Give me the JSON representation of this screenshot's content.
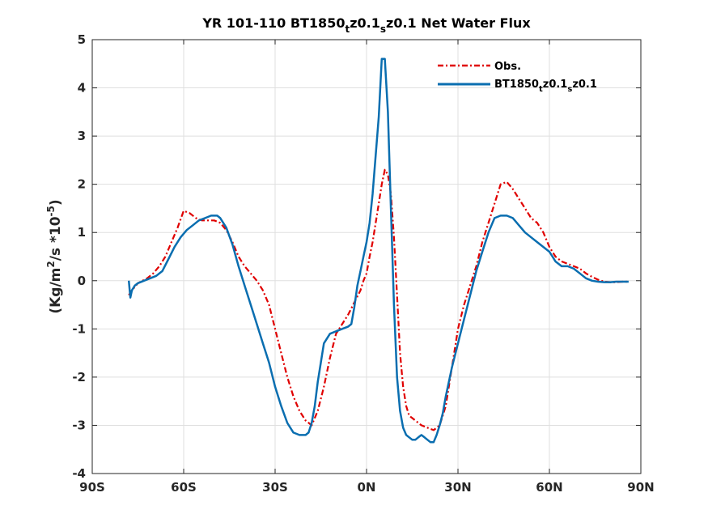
{
  "chart_data": {
    "type": "line",
    "title": {
      "prefix": "YR 101-110 BT1850",
      "sub1": "t",
      "mid": "z0.1",
      "sub2": "s",
      "suffix": "z0.1  Net Water Flux"
    },
    "ylabel": {
      "pre": "(Kg/m",
      "sup1": "2",
      "mid": "/s *10",
      "sup2": "-5",
      "post": ")"
    },
    "xlim": [
      -90,
      90
    ],
    "ylim": [
      -4,
      5
    ],
    "x_ticks": [
      {
        "value": -90,
        "label": "90S"
      },
      {
        "value": -60,
        "label": "60S"
      },
      {
        "value": -30,
        "label": "30S"
      },
      {
        "value": 0,
        "label": "0N"
      },
      {
        "value": 30,
        "label": "30N"
      },
      {
        "value": 60,
        "label": "60N"
      },
      {
        "value": 90,
        "label": "90N"
      }
    ],
    "y_ticks": [
      {
        "value": -4,
        "label": "-4"
      },
      {
        "value": -3,
        "label": "-3"
      },
      {
        "value": -2,
        "label": "-2"
      },
      {
        "value": -1,
        "label": "-1"
      },
      {
        "value": 0,
        "label": "0"
      },
      {
        "value": 1,
        "label": "1"
      },
      {
        "value": 2,
        "label": "2"
      },
      {
        "value": 3,
        "label": "3"
      },
      {
        "value": 4,
        "label": "4"
      },
      {
        "value": 5,
        "label": "5"
      }
    ],
    "grid": true,
    "legend_position": "top-right",
    "series": [
      {
        "name": "Obs.",
        "color": "#e00000",
        "style": "dash-dot",
        "x": [
          -78,
          -77,
          -75,
          -72,
          -70,
          -68,
          -66,
          -64,
          -62,
          -60,
          -58,
          -56,
          -54,
          -52,
          -50,
          -48,
          -46,
          -44,
          -42,
          -40,
          -38,
          -36,
          -34,
          -32,
          -30,
          -28,
          -26,
          -24,
          -22,
          -20,
          -18,
          -16,
          -14,
          -12,
          -10,
          -8,
          -6,
          -4,
          -2,
          -1,
          0,
          1,
          2,
          3,
          4,
          5,
          6,
          7,
          8,
          9,
          10,
          11,
          12,
          13,
          14,
          16,
          18,
          20,
          22,
          24,
          26,
          28,
          30,
          32,
          34,
          36,
          38,
          40,
          42,
          44,
          46,
          48,
          50,
          52,
          54,
          56,
          58,
          60,
          62,
          64,
          66,
          68,
          70,
          72,
          74,
          76,
          78,
          80,
          82,
          84,
          86
        ],
        "y": [
          -0.3,
          -0.2,
          -0.05,
          0.05,
          0.15,
          0.3,
          0.5,
          0.8,
          1.1,
          1.45,
          1.4,
          1.3,
          1.25,
          1.25,
          1.25,
          1.2,
          1.05,
          0.8,
          0.5,
          0.3,
          0.15,
          0.0,
          -0.2,
          -0.5,
          -1.0,
          -1.5,
          -2.0,
          -2.4,
          -2.7,
          -2.9,
          -3.0,
          -2.7,
          -2.2,
          -1.6,
          -1.1,
          -0.9,
          -0.7,
          -0.45,
          -0.2,
          0.0,
          0.15,
          0.5,
          0.8,
          1.2,
          1.6,
          2.0,
          2.3,
          2.2,
          1.8,
          0.9,
          -0.3,
          -1.5,
          -2.2,
          -2.6,
          -2.8,
          -2.9,
          -3.0,
          -3.05,
          -3.1,
          -3.0,
          -2.6,
          -1.8,
          -1.0,
          -0.5,
          -0.1,
          0.3,
          0.8,
          1.2,
          1.6,
          2.0,
          2.05,
          1.9,
          1.7,
          1.5,
          1.3,
          1.2,
          1.0,
          0.7,
          0.5,
          0.4,
          0.35,
          0.3,
          0.25,
          0.15,
          0.08,
          0.02,
          -0.02,
          -0.03,
          -0.03,
          -0.02,
          -0.02
        ]
      },
      {
        "name": "BT1850tz0.1sz0.1",
        "color": "#0a6eb0",
        "style": "solid",
        "x": [
          -78,
          -77.5,
          -77,
          -76,
          -75,
          -73,
          -71,
          -69,
          -67,
          -65,
          -63,
          -61,
          -59,
          -57,
          -55,
          -53,
          -51,
          -49,
          -48,
          -46,
          -44,
          -42,
          -40,
          -38,
          -36,
          -34,
          -32,
          -30,
          -28,
          -26,
          -24,
          -22,
          -20,
          -19,
          -18,
          -17,
          -16,
          -15,
          -14,
          -12,
          -10,
          -8,
          -6,
          -5,
          -4,
          -3,
          -2,
          -1,
          0,
          1,
          2,
          3,
          4,
          5,
          6,
          7,
          8,
          9,
          10,
          11,
          12,
          13,
          14,
          15,
          16,
          17,
          18,
          19,
          20,
          21,
          22,
          23,
          24,
          25,
          26,
          28,
          30,
          32,
          34,
          36,
          38,
          40,
          42,
          44,
          46,
          48,
          50,
          52,
          54,
          56,
          58,
          60,
          61,
          62,
          64,
          66,
          68,
          70,
          72,
          74,
          76,
          78,
          80,
          82,
          84,
          86
        ],
        "y": [
          0.0,
          -0.35,
          -0.2,
          -0.1,
          -0.05,
          0.0,
          0.05,
          0.1,
          0.2,
          0.45,
          0.7,
          0.9,
          1.05,
          1.15,
          1.25,
          1.3,
          1.35,
          1.35,
          1.3,
          1.1,
          0.75,
          0.3,
          -0.1,
          -0.5,
          -0.9,
          -1.3,
          -1.7,
          -2.2,
          -2.6,
          -2.95,
          -3.15,
          -3.2,
          -3.2,
          -3.15,
          -2.95,
          -2.6,
          -2.1,
          -1.7,
          -1.3,
          -1.1,
          -1.05,
          -1.0,
          -0.95,
          -0.9,
          -0.55,
          -0.1,
          0.2,
          0.5,
          0.8,
          1.2,
          1.8,
          2.6,
          3.4,
          4.6,
          4.6,
          3.5,
          1.5,
          -0.5,
          -2.0,
          -2.7,
          -3.05,
          -3.2,
          -3.25,
          -3.3,
          -3.3,
          -3.25,
          -3.2,
          -3.25,
          -3.3,
          -3.35,
          -3.35,
          -3.2,
          -3.0,
          -2.75,
          -2.4,
          -1.8,
          -1.3,
          -0.8,
          -0.3,
          0.2,
          0.6,
          1.0,
          1.3,
          1.35,
          1.35,
          1.3,
          1.15,
          1.0,
          0.9,
          0.8,
          0.7,
          0.6,
          0.5,
          0.4,
          0.3,
          0.3,
          0.25,
          0.15,
          0.05,
          0.0,
          -0.02,
          -0.03,
          -0.03,
          -0.02,
          -0.02,
          -0.02
        ]
      }
    ],
    "legend": {
      "entries": [
        {
          "label": "Obs."
        },
        {
          "label_prefix": "BT1850",
          "sub1": "t",
          "mid": "z0.1",
          "sub2": "s",
          "suffix": "z0.1"
        }
      ]
    }
  }
}
